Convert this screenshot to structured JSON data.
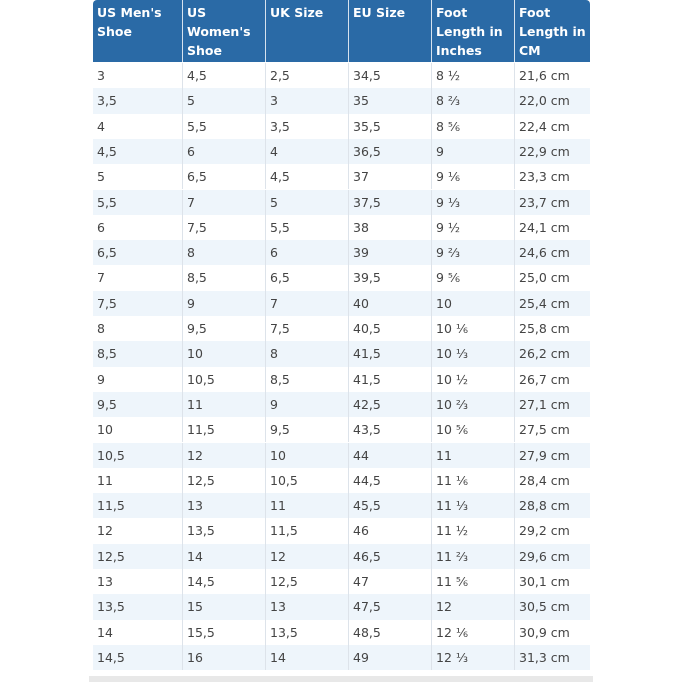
{
  "table": {
    "header": [
      "US Men's Shoe",
      "US Women's Shoe",
      "UK Size",
      "EU Size",
      "Foot Length in Inches",
      "Foot Length in CM"
    ],
    "rows": [
      [
        "3",
        "4,5",
        "2,5",
        "34,5",
        "8 ½",
        "21,6 cm"
      ],
      [
        "3,5",
        "5",
        "3",
        "35",
        "8 ⅔",
        "22,0 cm"
      ],
      [
        "4",
        "5,5",
        "3,5",
        "35,5",
        "8 ⅚",
        "22,4 cm"
      ],
      [
        "4,5",
        "6",
        "4",
        "36,5",
        "9",
        "22,9 cm"
      ],
      [
        "5",
        "6,5",
        "4,5",
        "37",
        "9 ⅙",
        "23,3 cm"
      ],
      [
        "5,5",
        "7",
        "5",
        "37,5",
        "9 ⅓",
        "23,7 cm"
      ],
      [
        "6",
        "7,5",
        "5,5",
        "38",
        "9 ½",
        "24,1 cm"
      ],
      [
        "6,5",
        "8",
        "6",
        "39",
        "9 ⅔",
        "24,6 cm"
      ],
      [
        "7",
        "8,5",
        "6,5",
        "39,5",
        "9 ⅚",
        "25,0 cm"
      ],
      [
        "7,5",
        "9",
        "7",
        "40",
        "10",
        "25,4 cm"
      ],
      [
        "8",
        "9,5",
        "7,5",
        "40,5",
        "10 ⅙",
        "25,8 cm"
      ],
      [
        "8,5",
        "10",
        "8",
        "41,5",
        "10 ⅓",
        "26,2 cm"
      ],
      [
        "9",
        "10,5",
        "8,5",
        "41,5",
        "10 ½",
        "26,7 cm"
      ],
      [
        "9,5",
        "11",
        "9",
        "42,5",
        "10 ⅔",
        "27,1 cm"
      ],
      [
        "10",
        "11,5",
        "9,5",
        "43,5",
        "10 ⅚",
        "27,5 cm"
      ],
      [
        "10,5",
        "12",
        "10",
        "44",
        "11",
        "27,9 cm"
      ],
      [
        "11",
        "12,5",
        "10,5",
        "44,5",
        "11 ⅙",
        "28,4 cm"
      ],
      [
        "11,5",
        "13",
        "11",
        "45,5",
        "11 ⅓",
        "28,8 cm"
      ],
      [
        "12",
        "13,5",
        "11,5",
        "46",
        "11 ½",
        "29,2 cm"
      ],
      [
        "12,5",
        "14",
        "12",
        "46,5",
        "11 ⅔",
        "29,6 cm"
      ],
      [
        "13",
        "14,5",
        "12,5",
        "47",
        "11 ⅚",
        "30,1 cm"
      ],
      [
        "13,5",
        "15",
        "13",
        "47,5",
        "12",
        "30,5 cm"
      ],
      [
        "14",
        "15,5",
        "13,5",
        "48,5",
        "12 ⅙",
        "30,9 cm"
      ],
      [
        "14,5",
        "16",
        "14",
        "49",
        "12 ⅓",
        "31,3 cm"
      ]
    ]
  }
}
